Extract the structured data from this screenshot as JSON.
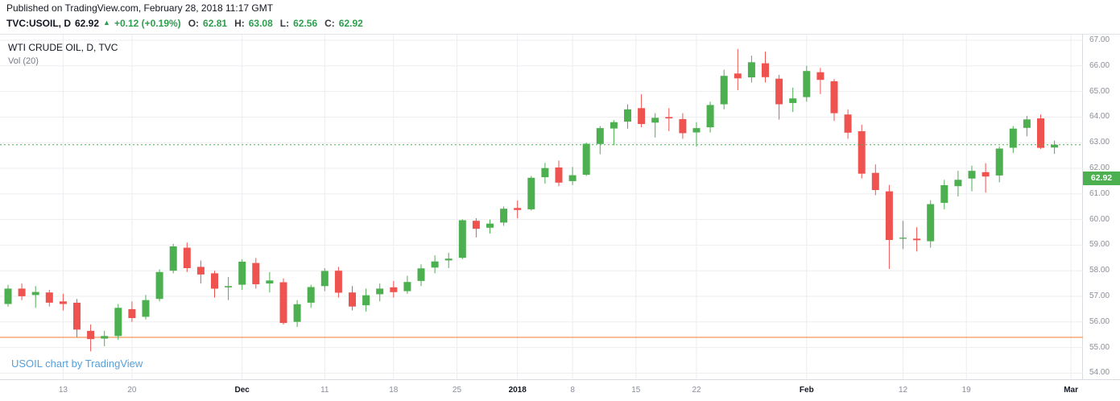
{
  "header": {
    "published": "Published on TradingView.com, February 28, 2018 11:17 GMT",
    "symbol": "TVC:USOIL, D",
    "last_price": "62.92",
    "direction_arrow": "▲",
    "change": "+0.12 (+0.19%)",
    "ohlc": {
      "o_label": "O:",
      "o": "62.81",
      "h_label": "H:",
      "h": "63.08",
      "l_label": "L:",
      "l": "62.56",
      "c_label": "C:",
      "c": "62.92"
    }
  },
  "legend": {
    "title": "WTI CRUDE OIL, D, TVC",
    "indicator": "Vol (20)"
  },
  "watermark": "USOIL chart by TradingView",
  "price_tag": "62.92",
  "colors": {
    "up": "#4caf50",
    "down": "#ef5350",
    "grid": "#ededf1",
    "support_line": "#f5a065",
    "price_line": "#4caf50",
    "tag_bg": "#4caf50",
    "axis_text": "#8a8e99",
    "header_green": "#2e9e4e",
    "watermark_blue": "#56a0dc"
  },
  "y_axis": {
    "levels": [
      67,
      66,
      65,
      64,
      63,
      62,
      61,
      60,
      59,
      58,
      57,
      56,
      55,
      54
    ]
  },
  "x_axis": {
    "ticks": [
      {
        "label": "13",
        "i": 4,
        "bold": false
      },
      {
        "label": "20",
        "i": 9,
        "bold": false
      },
      {
        "label": "Dec",
        "i": 17,
        "bold": true
      },
      {
        "label": "11",
        "i": 23,
        "bold": false
      },
      {
        "label": "18",
        "i": 28,
        "bold": false
      },
      {
        "label": "25",
        "i": 32.6,
        "bold": false
      },
      {
        "label": "2018",
        "i": 37,
        "bold": true
      },
      {
        "label": "8",
        "i": 41,
        "bold": false
      },
      {
        "label": "15",
        "i": 45.6,
        "bold": false
      },
      {
        "label": "22",
        "i": 50,
        "bold": false
      },
      {
        "label": "Feb",
        "i": 58,
        "bold": true
      },
      {
        "label": "12",
        "i": 65,
        "bold": false
      },
      {
        "label": "19",
        "i": 69.6,
        "bold": false
      },
      {
        "label": "Mar",
        "i": 77.2,
        "bold": true
      }
    ]
  },
  "chart_data": {
    "type": "candlestick",
    "title": "WTI CRUDE OIL, D, TVC",
    "timeframe": "D",
    "ylim": [
      53.76,
      67.22
    ],
    "current_price": 62.92,
    "support_level": 55.4,
    "legend_position": "top-left",
    "grid": true,
    "candles": [
      {
        "d": "Nov 7",
        "o": 56.7,
        "h": 57.45,
        "l": 56.6,
        "c": 57.3
      },
      {
        "d": "Nov 8",
        "o": 57.3,
        "h": 57.5,
        "l": 56.85,
        "c": 57.0
      },
      {
        "d": "Nov 9",
        "o": 57.05,
        "h": 57.4,
        "l": 56.55,
        "c": 57.17
      },
      {
        "d": "Nov 10",
        "o": 57.15,
        "h": 57.25,
        "l": 56.6,
        "c": 56.75
      },
      {
        "d": "Nov 13",
        "o": 56.8,
        "h": 57.1,
        "l": 56.45,
        "c": 56.7
      },
      {
        "d": "Nov 14",
        "o": 56.75,
        "h": 56.9,
        "l": 55.4,
        "c": 55.7
      },
      {
        "d": "Nov 15",
        "o": 55.65,
        "h": 55.9,
        "l": 54.85,
        "c": 55.33
      },
      {
        "d": "Nov 16",
        "o": 55.35,
        "h": 55.65,
        "l": 55.05,
        "c": 55.45
      },
      {
        "d": "Nov 17",
        "o": 55.45,
        "h": 56.7,
        "l": 55.3,
        "c": 56.55
      },
      {
        "d": "Nov 20",
        "o": 56.5,
        "h": 56.8,
        "l": 56.0,
        "c": 56.15
      },
      {
        "d": "Nov 21",
        "o": 56.2,
        "h": 57.05,
        "l": 56.1,
        "c": 56.85
      },
      {
        "d": "Nov 22",
        "o": 56.9,
        "h": 58.05,
        "l": 56.8,
        "c": 57.95
      },
      {
        "d": "Nov 24",
        "o": 58.0,
        "h": 59.05,
        "l": 57.9,
        "c": 58.95
      },
      {
        "d": "Nov 27",
        "o": 58.9,
        "h": 59.1,
        "l": 57.95,
        "c": 58.1
      },
      {
        "d": "Nov 28",
        "o": 58.15,
        "h": 58.4,
        "l": 57.5,
        "c": 57.85
      },
      {
        "d": "Nov 29",
        "o": 57.9,
        "h": 58.0,
        "l": 56.95,
        "c": 57.3
      },
      {
        "d": "Nov 30",
        "o": 57.35,
        "h": 57.75,
        "l": 56.85,
        "c": 57.4
      },
      {
        "d": "Dec 1",
        "o": 57.45,
        "h": 58.45,
        "l": 57.25,
        "c": 58.35
      },
      {
        "d": "Dec 4",
        "o": 58.3,
        "h": 58.5,
        "l": 57.3,
        "c": 57.47
      },
      {
        "d": "Dec 5",
        "o": 57.5,
        "h": 57.95,
        "l": 57.15,
        "c": 57.62
      },
      {
        "d": "Dec 6",
        "o": 57.55,
        "h": 57.7,
        "l": 55.9,
        "c": 55.96
      },
      {
        "d": "Dec 7",
        "o": 56.0,
        "h": 56.85,
        "l": 55.8,
        "c": 56.69
      },
      {
        "d": "Dec 8",
        "o": 56.75,
        "h": 57.45,
        "l": 56.55,
        "c": 57.36
      },
      {
        "d": "Dec 11",
        "o": 57.4,
        "h": 58.1,
        "l": 57.2,
        "c": 57.99
      },
      {
        "d": "Dec 12",
        "o": 58.0,
        "h": 58.15,
        "l": 56.95,
        "c": 57.14
      },
      {
        "d": "Dec 13",
        "o": 57.15,
        "h": 57.4,
        "l": 56.45,
        "c": 56.6
      },
      {
        "d": "Dec 14",
        "o": 56.65,
        "h": 57.3,
        "l": 56.4,
        "c": 57.04
      },
      {
        "d": "Dec 15",
        "o": 57.08,
        "h": 57.5,
        "l": 56.8,
        "c": 57.3
      },
      {
        "d": "Dec 18",
        "o": 57.35,
        "h": 57.6,
        "l": 56.95,
        "c": 57.16
      },
      {
        "d": "Dec 19",
        "o": 57.2,
        "h": 57.8,
        "l": 57.1,
        "c": 57.56
      },
      {
        "d": "Dec 20",
        "o": 57.6,
        "h": 58.25,
        "l": 57.4,
        "c": 58.09
      },
      {
        "d": "Dec 21",
        "o": 58.12,
        "h": 58.6,
        "l": 57.9,
        "c": 58.36
      },
      {
        "d": "Dec 22",
        "o": 58.4,
        "h": 58.7,
        "l": 58.1,
        "c": 58.47
      },
      {
        "d": "Dec 26",
        "o": 58.5,
        "h": 60.01,
        "l": 58.45,
        "c": 59.97
      },
      {
        "d": "Dec 27",
        "o": 59.95,
        "h": 60.05,
        "l": 59.3,
        "c": 59.64
      },
      {
        "d": "Dec 28",
        "o": 59.68,
        "h": 60.0,
        "l": 59.45,
        "c": 59.84
      },
      {
        "d": "Dec 29",
        "o": 59.88,
        "h": 60.51,
        "l": 59.75,
        "c": 60.42
      },
      {
        "d": "Jan 2",
        "o": 60.45,
        "h": 60.74,
        "l": 60.05,
        "c": 60.37
      },
      {
        "d": "Jan 3",
        "o": 60.4,
        "h": 61.7,
        "l": 60.35,
        "c": 61.63
      },
      {
        "d": "Jan 4",
        "o": 61.65,
        "h": 62.21,
        "l": 61.4,
        "c": 62.01
      },
      {
        "d": "Jan 5",
        "o": 62.03,
        "h": 62.3,
        "l": 61.3,
        "c": 61.44
      },
      {
        "d": "Jan 8",
        "o": 61.5,
        "h": 62.05,
        "l": 61.35,
        "c": 61.73
      },
      {
        "d": "Jan 9",
        "o": 61.75,
        "h": 63.0,
        "l": 61.7,
        "c": 62.96
      },
      {
        "d": "Jan 10",
        "o": 62.95,
        "h": 63.65,
        "l": 62.55,
        "c": 63.57
      },
      {
        "d": "Jan 11",
        "o": 63.55,
        "h": 63.88,
        "l": 62.9,
        "c": 63.8
      },
      {
        "d": "Jan 12",
        "o": 63.82,
        "h": 64.5,
        "l": 63.55,
        "c": 64.3
      },
      {
        "d": "Jan 16",
        "o": 64.35,
        "h": 64.89,
        "l": 63.6,
        "c": 63.73
      },
      {
        "d": "Jan 17",
        "o": 63.78,
        "h": 64.15,
        "l": 63.2,
        "c": 63.97
      },
      {
        "d": "Jan 18",
        "o": 64.0,
        "h": 64.35,
        "l": 63.45,
        "c": 63.95
      },
      {
        "d": "Jan 19",
        "o": 63.92,
        "h": 64.15,
        "l": 63.15,
        "c": 63.37
      },
      {
        "d": "Jan 22",
        "o": 63.4,
        "h": 63.8,
        "l": 62.85,
        "c": 63.57
      },
      {
        "d": "Jan 23",
        "o": 63.6,
        "h": 64.6,
        "l": 63.4,
        "c": 64.47
      },
      {
        "d": "Jan 24",
        "o": 64.5,
        "h": 65.85,
        "l": 64.3,
        "c": 65.61
      },
      {
        "d": "Jan 25",
        "o": 65.7,
        "h": 66.66,
        "l": 65.05,
        "c": 65.51
      },
      {
        "d": "Jan 26",
        "o": 65.55,
        "h": 66.4,
        "l": 65.35,
        "c": 66.14
      },
      {
        "d": "Jan 29",
        "o": 66.1,
        "h": 66.55,
        "l": 65.35,
        "c": 65.56
      },
      {
        "d": "Jan 30",
        "o": 65.5,
        "h": 65.65,
        "l": 63.9,
        "c": 64.5
      },
      {
        "d": "Jan 31",
        "o": 64.55,
        "h": 65.15,
        "l": 64.2,
        "c": 64.73
      },
      {
        "d": "Feb 1",
        "o": 64.78,
        "h": 66.0,
        "l": 64.6,
        "c": 65.8
      },
      {
        "d": "Feb 2",
        "o": 65.75,
        "h": 65.92,
        "l": 64.9,
        "c": 65.45
      },
      {
        "d": "Feb 5",
        "o": 65.4,
        "h": 65.48,
        "l": 63.85,
        "c": 64.15
      },
      {
        "d": "Feb 6",
        "o": 64.1,
        "h": 64.3,
        "l": 63.15,
        "c": 63.39
      },
      {
        "d": "Feb 7",
        "o": 63.45,
        "h": 63.7,
        "l": 61.6,
        "c": 61.79
      },
      {
        "d": "Feb 8",
        "o": 61.82,
        "h": 62.15,
        "l": 60.95,
        "c": 61.15
      },
      {
        "d": "Feb 9",
        "o": 61.1,
        "h": 61.35,
        "l": 58.07,
        "c": 59.2
      },
      {
        "d": "Feb 12",
        "o": 59.25,
        "h": 59.95,
        "l": 58.85,
        "c": 59.29
      },
      {
        "d": "Feb 13",
        "o": 59.25,
        "h": 59.7,
        "l": 58.75,
        "c": 59.19
      },
      {
        "d": "Feb 14",
        "o": 59.15,
        "h": 60.75,
        "l": 58.9,
        "c": 60.6
      },
      {
        "d": "Feb 15",
        "o": 60.65,
        "h": 61.55,
        "l": 60.4,
        "c": 61.34
      },
      {
        "d": "Feb 16",
        "o": 61.3,
        "h": 61.9,
        "l": 60.9,
        "c": 61.55
      },
      {
        "d": "Feb 20",
        "o": 61.6,
        "h": 62.1,
        "l": 61.1,
        "c": 61.9
      },
      {
        "d": "Feb 21",
        "o": 61.85,
        "h": 62.2,
        "l": 61.05,
        "c": 61.68
      },
      {
        "d": "Feb 22",
        "o": 61.72,
        "h": 62.85,
        "l": 61.45,
        "c": 62.77
      },
      {
        "d": "Feb 23",
        "o": 62.8,
        "h": 63.65,
        "l": 62.6,
        "c": 63.55
      },
      {
        "d": "Feb 26",
        "o": 63.58,
        "h": 64.05,
        "l": 63.25,
        "c": 63.91
      },
      {
        "d": "Feb 27",
        "o": 63.95,
        "h": 64.1,
        "l": 62.75,
        "c": 62.8
      },
      {
        "d": "Feb 28",
        "o": 62.81,
        "h": 63.08,
        "l": 62.56,
        "c": 62.92
      }
    ]
  }
}
